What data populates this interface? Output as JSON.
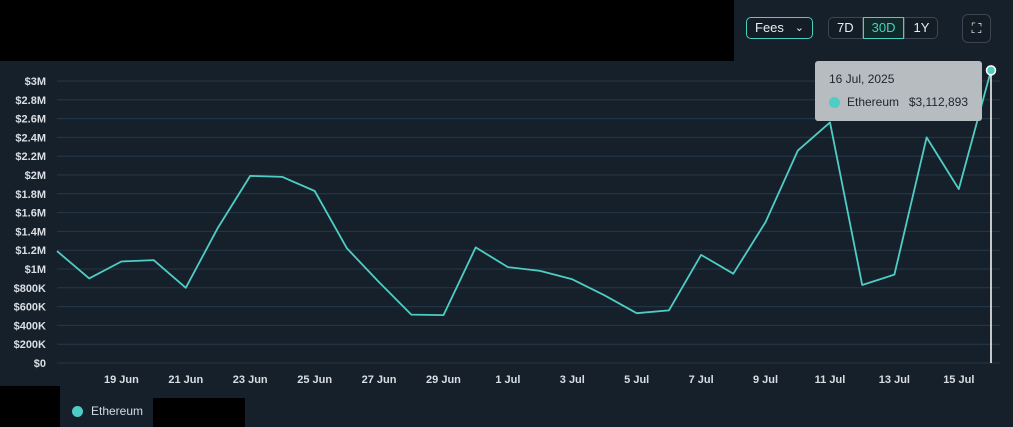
{
  "toolbar": {
    "metric_label": "Fees",
    "ranges": [
      "7D",
      "30D",
      "1Y"
    ],
    "active_range": "30D",
    "expand_icon": "expand-icon"
  },
  "tooltip": {
    "date": "16 Jul, 2025",
    "series": "Ethereum",
    "value": "$3,112,893"
  },
  "legend": {
    "items": [
      {
        "name": "Ethereum",
        "color": "#4ecdc4"
      }
    ]
  },
  "chart_data": {
    "type": "line",
    "title": "",
    "xlabel": "",
    "ylabel": "",
    "ylim": [
      0,
      3000000
    ],
    "y_ticks": [
      {
        "v": 0,
        "label": "$0"
      },
      {
        "v": 200000,
        "label": "$200K"
      },
      {
        "v": 400000,
        "label": "$400K"
      },
      {
        "v": 600000,
        "label": "$600K"
      },
      {
        "v": 800000,
        "label": "$800K"
      },
      {
        "v": 1000000,
        "label": "$1M"
      },
      {
        "v": 1200000,
        "label": "$1.2M"
      },
      {
        "v": 1400000,
        "label": "$1.4M"
      },
      {
        "v": 1600000,
        "label": "$1.6M"
      },
      {
        "v": 1800000,
        "label": "$1.8M"
      },
      {
        "v": 2000000,
        "label": "$2M"
      },
      {
        "v": 2200000,
        "label": "$2.2M"
      },
      {
        "v": 2400000,
        "label": "$2.4M"
      },
      {
        "v": 2600000,
        "label": "$2.6M"
      },
      {
        "v": 2800000,
        "label": "$2.8M"
      },
      {
        "v": 3000000,
        "label": "$3M"
      }
    ],
    "x": [
      "2025-06-17",
      "2025-06-18",
      "2025-06-19",
      "2025-06-20",
      "2025-06-21",
      "2025-06-22",
      "2025-06-23",
      "2025-06-24",
      "2025-06-25",
      "2025-06-26",
      "2025-06-27",
      "2025-06-28",
      "2025-06-29",
      "2025-06-30",
      "2025-07-01",
      "2025-07-02",
      "2025-07-03",
      "2025-07-04",
      "2025-07-05",
      "2025-07-06",
      "2025-07-07",
      "2025-07-08",
      "2025-07-09",
      "2025-07-10",
      "2025-07-11",
      "2025-07-12",
      "2025-07-13",
      "2025-07-14",
      "2025-07-15",
      "2025-07-16"
    ],
    "x_tick_labels": [
      "19 Jun",
      "21 Jun",
      "23 Jun",
      "25 Jun",
      "27 Jun",
      "29 Jun",
      "1 Jul",
      "3 Jul",
      "5 Jul",
      "7 Jul",
      "9 Jul",
      "11 Jul",
      "13 Jul",
      "15 Jul"
    ],
    "series": [
      {
        "name": "Ethereum",
        "color": "#4ecdc4",
        "values": [
          1190000,
          900000,
          1080000,
          1095000,
          800000,
          1440000,
          1990000,
          1980000,
          1830000,
          1220000,
          860000,
          515000,
          510000,
          1230000,
          1020000,
          980000,
          890000,
          720000,
          530000,
          560000,
          1150000,
          950000,
          1500000,
          2260000,
          2560000,
          830000,
          940000,
          2400000,
          1850000,
          3112893
        ]
      }
    ],
    "grid": true,
    "legend_position": "bottom-left"
  }
}
